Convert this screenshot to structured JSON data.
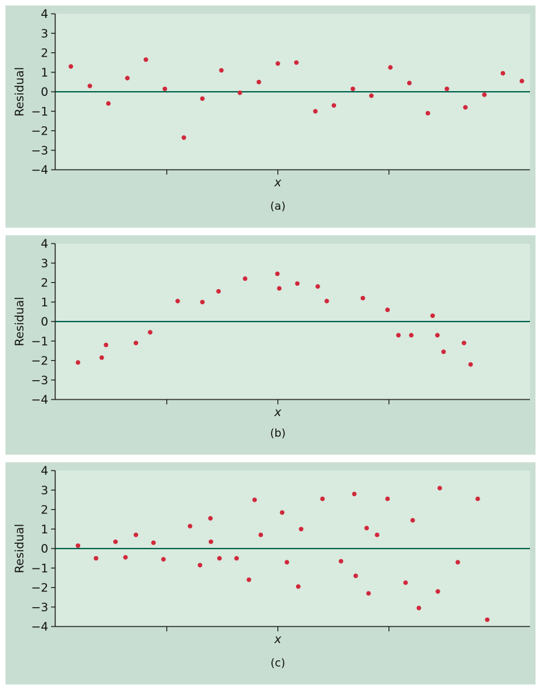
{
  "colors": {
    "panel_bg": "#c9ded2",
    "plot_bg": "#d9eadf",
    "zero_line": "#0a6a54",
    "point": "#d0283a",
    "axis": "#111111"
  },
  "chart_data": [
    {
      "type": "scatter",
      "caption": "(a)",
      "xlabel": "x",
      "ylabel": "Residual",
      "ylim": [
        -4,
        4
      ],
      "xlim": [
        0,
        1
      ],
      "yticks": [
        "4",
        "3",
        "2",
        "1",
        "0",
        "−1",
        "−2",
        "−3",
        "−4"
      ],
      "reference_line": 0,
      "points": [
        [
          0.033,
          1.3
        ],
        [
          0.073,
          0.3
        ],
        [
          0.112,
          -0.6
        ],
        [
          0.152,
          0.7
        ],
        [
          0.191,
          1.65
        ],
        [
          0.231,
          0.15
        ],
        [
          0.271,
          -2.35
        ],
        [
          0.31,
          -0.35
        ],
        [
          0.35,
          1.1
        ],
        [
          0.389,
          -0.05
        ],
        [
          0.429,
          0.5
        ],
        [
          0.469,
          1.45
        ],
        [
          0.508,
          1.5
        ],
        [
          0.548,
          -1.0
        ],
        [
          0.587,
          -0.7
        ],
        [
          0.627,
          0.15
        ],
        [
          0.666,
          -0.2
        ],
        [
          0.706,
          1.25
        ],
        [
          0.746,
          0.45
        ],
        [
          0.785,
          -1.1
        ],
        [
          0.825,
          0.15
        ],
        [
          0.864,
          -0.8
        ],
        [
          0.904,
          -0.15
        ],
        [
          0.943,
          0.95
        ],
        [
          0.983,
          0.55
        ]
      ]
    },
    {
      "type": "scatter",
      "caption": "(b)",
      "xlabel": "x",
      "ylabel": "Residual",
      "ylim": [
        -4,
        4
      ],
      "xlim": [
        0,
        1
      ],
      "yticks": [
        "4",
        "3",
        "2",
        "1",
        "0",
        "−1",
        "−2",
        "−3",
        "−4"
      ],
      "reference_line": 0,
      "points": [
        [
          0.048,
          -2.1
        ],
        [
          0.098,
          -1.85
        ],
        [
          0.107,
          -1.2
        ],
        [
          0.17,
          -1.1
        ],
        [
          0.2,
          -0.55
        ],
        [
          0.258,
          1.05
        ],
        [
          0.31,
          1.0
        ],
        [
          0.344,
          1.55
        ],
        [
          0.4,
          2.2
        ],
        [
          0.468,
          2.45
        ],
        [
          0.472,
          1.7
        ],
        [
          0.51,
          1.95
        ],
        [
          0.553,
          1.8
        ],
        [
          0.572,
          1.05
        ],
        [
          0.648,
          1.2
        ],
        [
          0.7,
          0.6
        ],
        [
          0.723,
          -0.7
        ],
        [
          0.75,
          -0.7
        ],
        [
          0.795,
          0.3
        ],
        [
          0.805,
          -0.7
        ],
        [
          0.818,
          -1.55
        ],
        [
          0.861,
          -1.1
        ],
        [
          0.875,
          -2.2
        ]
      ]
    },
    {
      "type": "scatter",
      "caption": "(c)",
      "xlabel": "x",
      "ylabel": "Residual",
      "ylim": [
        -4,
        4
      ],
      "xlim": [
        0,
        1
      ],
      "yticks": [
        "4",
        "3",
        "2",
        "1",
        "0",
        "−1",
        "−2",
        "−3",
        "−4"
      ],
      "reference_line": 0,
      "points": [
        [
          0.048,
          0.15
        ],
        [
          0.086,
          -0.5
        ],
        [
          0.127,
          0.35
        ],
        [
          0.148,
          -0.45
        ],
        [
          0.17,
          0.7
        ],
        [
          0.207,
          0.3
        ],
        [
          0.228,
          -0.55
        ],
        [
          0.284,
          1.15
        ],
        [
          0.305,
          -0.85
        ],
        [
          0.327,
          1.55
        ],
        [
          0.328,
          0.35
        ],
        [
          0.346,
          -0.5
        ],
        [
          0.382,
          -0.5
        ],
        [
          0.408,
          -1.6
        ],
        [
          0.42,
          2.5
        ],
        [
          0.433,
          0.7
        ],
        [
          0.478,
          1.85
        ],
        [
          0.488,
          -0.7
        ],
        [
          0.512,
          -1.95
        ],
        [
          0.518,
          1.0
        ],
        [
          0.563,
          2.55
        ],
        [
          0.602,
          -0.65
        ],
        [
          0.63,
          2.8
        ],
        [
          0.633,
          -1.4
        ],
        [
          0.656,
          1.05
        ],
        [
          0.66,
          -2.3
        ],
        [
          0.678,
          0.7
        ],
        [
          0.7,
          2.55
        ],
        [
          0.738,
          -1.75
        ],
        [
          0.753,
          1.45
        ],
        [
          0.766,
          -3.05
        ],
        [
          0.806,
          -2.2
        ],
        [
          0.81,
          3.1
        ],
        [
          0.848,
          -0.7
        ],
        [
          0.89,
          2.55
        ],
        [
          0.91,
          -3.65
        ]
      ]
    }
  ]
}
